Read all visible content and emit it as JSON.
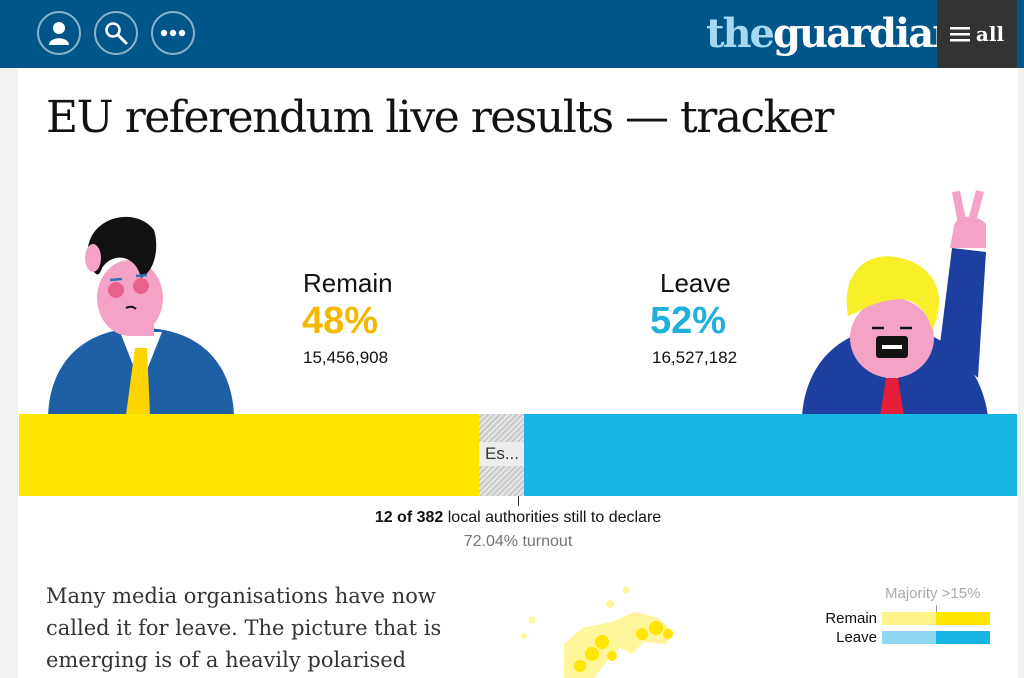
{
  "header": {
    "logo_the": "the",
    "logo_guardian": "guardian",
    "menu_label": "all",
    "icons": [
      "profile-icon",
      "search-icon",
      "more-icon",
      "hamburger-icon"
    ]
  },
  "article": {
    "title": "EU referendum live results — tracker",
    "body": "Many media organisations have now called it for leave. The picture that is emerging is of a heavily polarised"
  },
  "results": {
    "remain": {
      "label": "Remain",
      "percent": "48%",
      "votes": "15,456,908",
      "color": "#f5b800"
    },
    "leave": {
      "label": "Leave",
      "percent": "52%",
      "votes": "16,527,182",
      "color": "#1fb1db"
    },
    "undeclared_label": "Es...",
    "declared_count": "12 of 382",
    "declared_text": " local authorities still to declare",
    "turnout": "72.04% turnout"
  },
  "legend": {
    "majority": "Majority >15%",
    "remain_label": "Remain",
    "leave_label": "Leave",
    "remain_colors": [
      "#fff38a",
      "#ffe500"
    ],
    "leave_colors": [
      "#8fd8f2",
      "#17b4e4"
    ]
  },
  "colors": {
    "header_bg": "#005689",
    "menu_bg": "#333333"
  }
}
